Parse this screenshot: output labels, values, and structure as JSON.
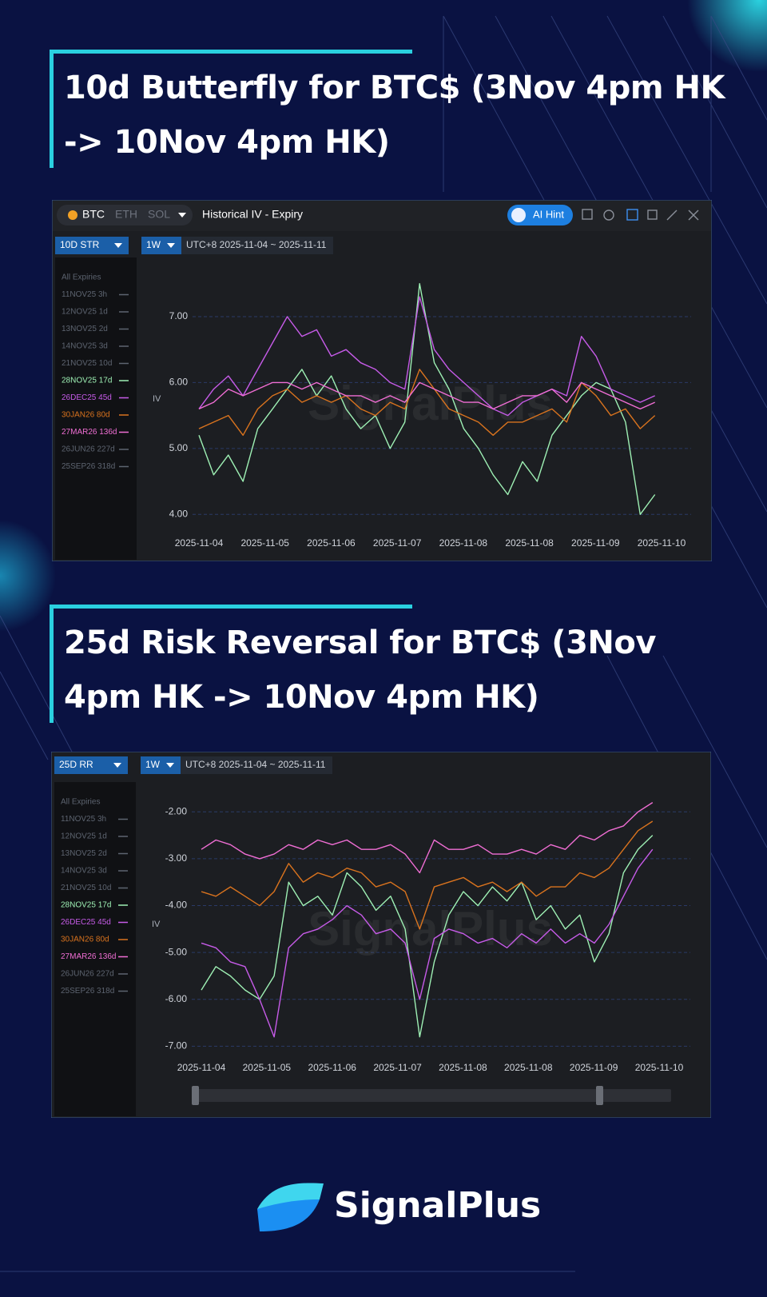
{
  "toolbar": {
    "coins": [
      "BTC",
      "ETH",
      "SOL"
    ],
    "view": "Historical IV - Expiry",
    "ai_hint": "AI Hint"
  },
  "watermark": "SignalPlus",
  "brand": "SignalPlus",
  "chart_data": [
    {
      "type": "line",
      "title": "10d Butterfly for BTC$ (3Nov 4pm HK -> 10Nov 4pm HK)",
      "selector": "10D STR",
      "period": "1W",
      "range": "UTC+8 2025-11-04 ~ 2025-11-11",
      "ylabel": "IV",
      "legend": {
        "header": "All Expiries",
        "items": [
          "11NOV25 3h",
          "12NOV25 1d",
          "13NOV25 2d",
          "14NOV25 3d",
          "21NOV25 10d",
          "28NOV25 17d",
          "26DEC25 45d",
          "30JAN26 80d",
          "27MAR26 136d",
          "26JUN26 227d",
          "25SEP26 318d"
        ]
      },
      "xticks": [
        "2025-11-04",
        "2025-11-05",
        "2025-11-06",
        "2025-11-07",
        "2025-11-08",
        "2025-11-08",
        "2025-11-09",
        "2025-11-10"
      ],
      "ylim": [
        3.7,
        7.8
      ],
      "yticks": [
        {
          "value": 4,
          "label": "4.00"
        },
        {
          "value": 5,
          "label": "5.00"
        },
        {
          "value": 6,
          "label": "6.00"
        },
        {
          "value": 7,
          "label": "7.00"
        }
      ],
      "grid": true,
      "series": [
        {
          "name": "28NOV25 17d",
          "color": "#9ef0b4",
          "values": [
            5.2,
            4.6,
            4.9,
            4.5,
            5.3,
            5.6,
            5.9,
            6.2,
            5.8,
            6.1,
            5.6,
            5.3,
            5.5,
            5.0,
            5.4,
            7.5,
            6.3,
            5.9,
            5.3,
            5.0,
            4.6,
            4.3,
            4.8,
            4.5,
            5.2,
            5.5,
            5.8,
            6.0,
            5.9,
            5.4,
            4.0,
            4.3
          ]
        },
        {
          "name": "26DEC25 45d",
          "color": "#c65be8",
          "values": [
            5.6,
            5.9,
            6.1,
            5.8,
            6.2,
            6.6,
            7.0,
            6.7,
            6.8,
            6.4,
            6.5,
            6.3,
            6.2,
            6.0,
            5.9,
            7.3,
            6.5,
            6.2,
            6.0,
            5.8,
            5.6,
            5.5,
            5.7,
            5.8,
            5.9,
            5.8,
            6.7,
            6.4,
            5.9,
            5.8,
            5.7,
            5.8
          ]
        },
        {
          "name": "30JAN26 80d",
          "color": "#d9731e",
          "values": [
            5.3,
            5.4,
            5.5,
            5.2,
            5.6,
            5.8,
            5.9,
            5.7,
            5.8,
            5.7,
            5.8,
            5.6,
            5.5,
            5.7,
            5.6,
            6.2,
            5.9,
            5.6,
            5.5,
            5.4,
            5.2,
            5.4,
            5.4,
            5.5,
            5.6,
            5.4,
            6.0,
            5.8,
            5.5,
            5.6,
            5.3,
            5.5
          ]
        },
        {
          "name": "27MAR26 136d",
          "color": "#f06ed4",
          "values": [
            5.6,
            5.7,
            5.9,
            5.8,
            5.9,
            6.0,
            6.0,
            5.9,
            6.0,
            5.9,
            5.8,
            5.8,
            5.7,
            5.8,
            5.7,
            6.0,
            5.9,
            5.8,
            5.7,
            5.7,
            5.6,
            5.7,
            5.8,
            5.8,
            5.9,
            5.7,
            6.0,
            5.9,
            5.8,
            5.7,
            5.6,
            5.7
          ]
        }
      ]
    },
    {
      "type": "line",
      "title": "25d Risk Reversal for BTC$ (3Nov 4pm HK -> 10Nov 4pm HK)",
      "selector": "25D RR",
      "period": "1W",
      "range": "UTC+8 2025-11-04 ~ 2025-11-11",
      "ylabel": "IV",
      "legend": {
        "header": "All Expiries",
        "items": [
          "11NOV25 3h",
          "12NOV25 1d",
          "13NOV25 2d",
          "14NOV25 3d",
          "21NOV25 10d",
          "28NOV25 17d",
          "26DEC25 45d",
          "30JAN26 80d",
          "27MAR26 136d",
          "26JUN26 227d",
          "25SEP26 318d"
        ]
      },
      "xticks": [
        "2025-11-04",
        "2025-11-05",
        "2025-11-06",
        "2025-11-07",
        "2025-11-08",
        "2025-11-08",
        "2025-11-09",
        "2025-11-10"
      ],
      "ylim": [
        -7.3,
        -1.5
      ],
      "yticks": [
        {
          "value": -7,
          "label": "-7.00"
        },
        {
          "value": -6,
          "label": "-6.00"
        },
        {
          "value": -5,
          "label": "-5.00"
        },
        {
          "value": -4,
          "label": "-4.00"
        },
        {
          "value": -3,
          "label": "-3.00"
        },
        {
          "value": -2,
          "label": "-2.00"
        }
      ],
      "grid": true,
      "series": [
        {
          "name": "28NOV25 17d",
          "color": "#9ef0b4",
          "values": [
            -5.8,
            -5.3,
            -5.5,
            -5.8,
            -6.0,
            -5.5,
            -3.5,
            -4.0,
            -3.8,
            -4.2,
            -3.3,
            -3.6,
            -4.1,
            -3.8,
            -4.5,
            -6.8,
            -5.2,
            -4.2,
            -3.7,
            -4.0,
            -3.6,
            -3.9,
            -3.5,
            -4.3,
            -4.0,
            -4.5,
            -4.2,
            -5.2,
            -4.6,
            -3.3,
            -2.8,
            -2.5
          ]
        },
        {
          "name": "26DEC25 45d",
          "color": "#c65be8",
          "values": [
            -4.8,
            -4.9,
            -5.2,
            -5.3,
            -6.0,
            -6.8,
            -4.9,
            -4.6,
            -4.5,
            -4.3,
            -4.0,
            -4.2,
            -4.6,
            -4.5,
            -4.8,
            -6.0,
            -4.7,
            -4.5,
            -4.6,
            -4.8,
            -4.7,
            -4.9,
            -4.6,
            -4.8,
            -4.5,
            -4.8,
            -4.6,
            -4.8,
            -4.4,
            -3.8,
            -3.2,
            -2.8
          ]
        },
        {
          "name": "30JAN26 80d",
          "color": "#d9731e",
          "values": [
            -3.7,
            -3.8,
            -3.6,
            -3.8,
            -4.0,
            -3.7,
            -3.1,
            -3.5,
            -3.3,
            -3.4,
            -3.2,
            -3.3,
            -3.6,
            -3.5,
            -3.7,
            -4.5,
            -3.6,
            -3.5,
            -3.4,
            -3.6,
            -3.5,
            -3.7,
            -3.5,
            -3.8,
            -3.6,
            -3.6,
            -3.3,
            -3.4,
            -3.2,
            -2.8,
            -2.4,
            -2.2
          ]
        },
        {
          "name": "27MAR26 136d",
          "color": "#f06ed4",
          "values": [
            -2.8,
            -2.6,
            -2.7,
            -2.9,
            -3.0,
            -2.9,
            -2.7,
            -2.8,
            -2.6,
            -2.7,
            -2.6,
            -2.8,
            -2.8,
            -2.7,
            -2.9,
            -3.3,
            -2.6,
            -2.8,
            -2.8,
            -2.7,
            -2.9,
            -2.9,
            -2.8,
            -2.9,
            -2.7,
            -2.8,
            -2.5,
            -2.6,
            -2.4,
            -2.3,
            -2.0,
            -1.8
          ]
        }
      ]
    }
  ]
}
